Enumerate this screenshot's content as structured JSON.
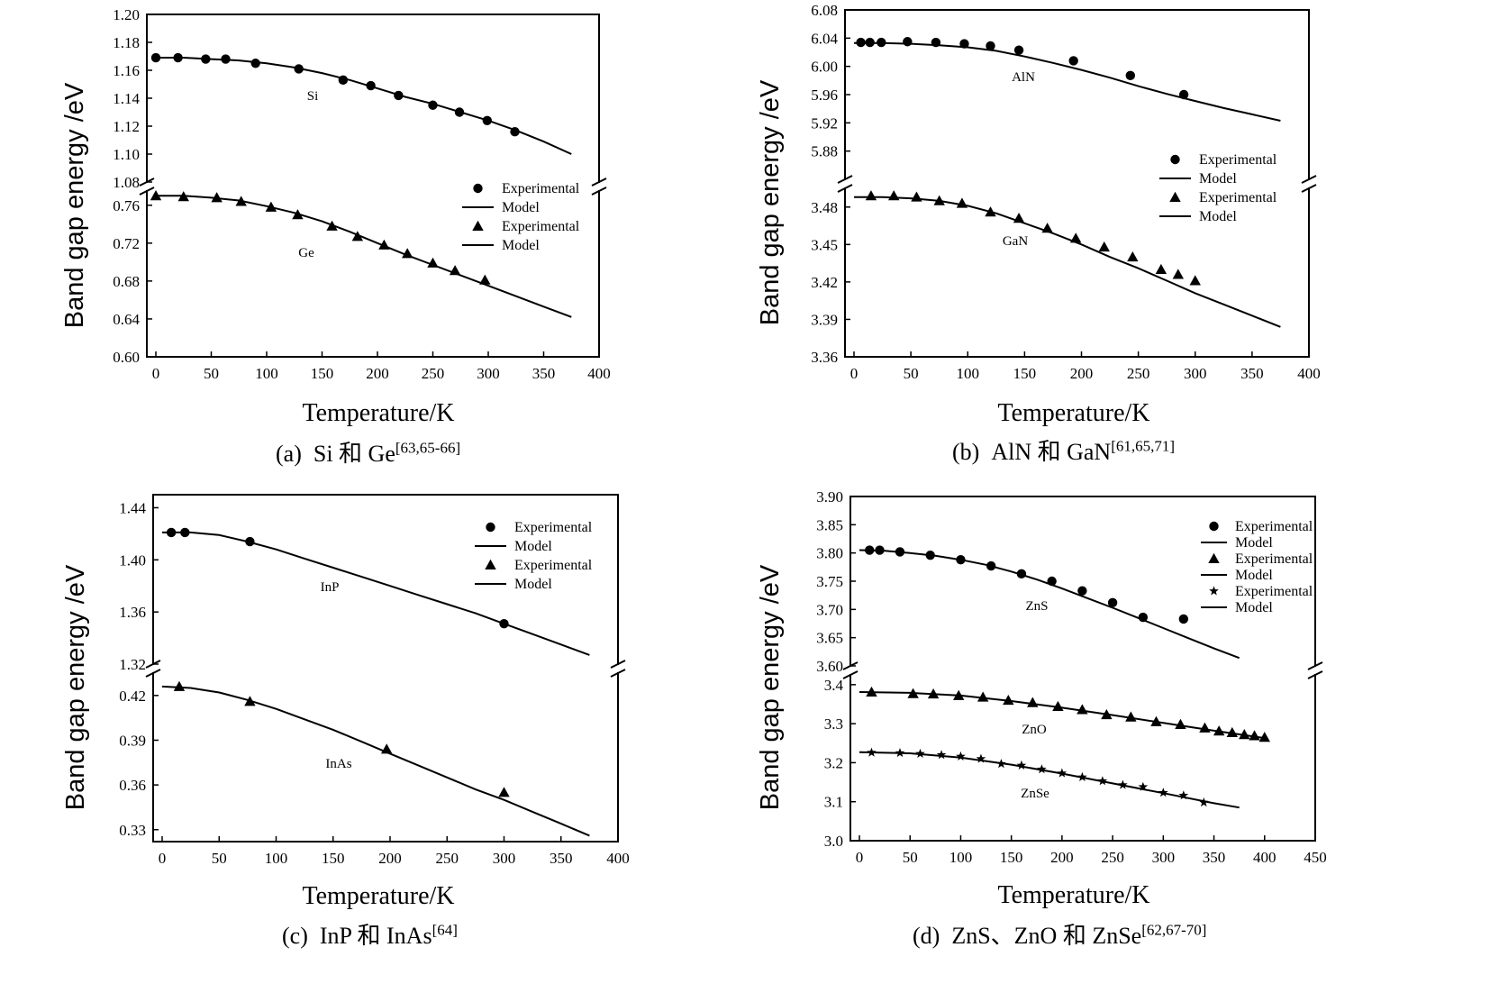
{
  "y_axis_label": "Band gap energy /eV",
  "x_axis_label": "Temperature/K",
  "legend_labels": {
    "experimental": "Experimental",
    "model": "Model"
  },
  "captions": [
    {
      "letter": "(a)",
      "text": "Si 和 Ge",
      "refs": "[63,65-66]"
    },
    {
      "letter": "(b)",
      "text": "AlN 和 GaN",
      "refs": "[61,65,71]"
    },
    {
      "letter": "(c)",
      "text": "InP 和 InAs",
      "refs": "[64]"
    },
    {
      "letter": "(d)",
      "text": "ZnS、ZnO 和 ZnSe",
      "refs": "[62,67-70]"
    }
  ],
  "chart_data": [
    {
      "id": "a",
      "type": "scatter",
      "xlabel": "Temperature/K",
      "ylabel": "Band gap energy /eV",
      "xlim": [
        0,
        400
      ],
      "xticks": [
        0,
        50,
        100,
        150,
        200,
        250,
        300,
        350,
        400
      ],
      "legend_position": "right",
      "upper": {
        "ylim": [
          1.08,
          1.2
        ],
        "yticks": [
          "1.08",
          "1.10",
          "1.12",
          "1.14",
          "1.16",
          "1.18",
          "1.20"
        ]
      },
      "lower": {
        "ylim": [
          0.6,
          0.775
        ],
        "yticks": [
          "0.60",
          "0.64",
          "0.68",
          "0.72",
          "0.76"
        ]
      },
      "series": [
        {
          "material": "Si",
          "panel": "upper",
          "marker": "circle",
          "exp_x": [
            0,
            20,
            45,
            63,
            90,
            129,
            169,
            194,
            219,
            250,
            274,
            299,
            324
          ],
          "exp_y": [
            1.169,
            1.169,
            1.168,
            1.168,
            1.165,
            1.161,
            1.153,
            1.149,
            1.142,
            1.135,
            1.13,
            1.124,
            1.116
          ],
          "model_x": [
            0,
            25,
            50,
            75,
            100,
            125,
            150,
            175,
            200,
            225,
            250,
            275,
            300,
            325,
            350,
            375
          ],
          "model_y": [
            1.169,
            1.169,
            1.168,
            1.167,
            1.165,
            1.162,
            1.158,
            1.153,
            1.147,
            1.141,
            1.136,
            1.13,
            1.124,
            1.117,
            1.109,
            1.1
          ]
        },
        {
          "material": "Ge",
          "panel": "lower",
          "marker": "triangle",
          "exp_x": [
            0,
            25,
            55,
            77,
            104,
            128,
            159,
            182,
            206,
            227,
            250,
            270,
            297
          ],
          "exp_y": [
            0.77,
            0.769,
            0.768,
            0.764,
            0.758,
            0.75,
            0.738,
            0.727,
            0.718,
            0.709,
            0.699,
            0.691,
            0.681
          ],
          "model_x": [
            0,
            25,
            50,
            75,
            100,
            125,
            150,
            175,
            200,
            225,
            250,
            275,
            300,
            325,
            350,
            375
          ],
          "model_y": [
            0.77,
            0.77,
            0.768,
            0.765,
            0.759,
            0.752,
            0.743,
            0.732,
            0.72,
            0.708,
            0.697,
            0.686,
            0.675,
            0.664,
            0.653,
            0.642
          ]
        }
      ]
    },
    {
      "id": "b",
      "type": "scatter",
      "xlabel": "Temperature/K",
      "ylabel": "Band gap energy /eV",
      "xlim": [
        0,
        400
      ],
      "xticks": [
        0,
        50,
        100,
        150,
        200,
        250,
        300,
        350,
        400
      ],
      "legend_position": "right",
      "upper": {
        "ylim": [
          5.84,
          6.08
        ],
        "yticks": [
          "5.88",
          "5.92",
          "5.96",
          "6.00",
          "6.04",
          "6.08"
        ]
      },
      "lower": {
        "ylim": [
          3.36,
          3.495
        ],
        "yticks": [
          "3.36",
          "3.39",
          "3.42",
          "3.45",
          "3.48"
        ]
      },
      "series": [
        {
          "material": "AlN",
          "panel": "upper",
          "marker": "circle",
          "exp_x": [
            6,
            14,
            24,
            47,
            72,
            97,
            120,
            145,
            193,
            243,
            290
          ],
          "exp_y": [
            6.034,
            6.034,
            6.034,
            6.035,
            6.034,
            6.032,
            6.029,
            6.023,
            6.008,
            5.987,
            5.96
          ],
          "model_x": [
            0,
            25,
            50,
            75,
            100,
            125,
            150,
            175,
            200,
            225,
            250,
            275,
            300,
            325,
            350,
            375
          ],
          "model_y": [
            6.033,
            6.033,
            6.032,
            6.03,
            6.027,
            6.022,
            6.014,
            6.005,
            5.995,
            5.984,
            5.972,
            5.961,
            5.951,
            5.941,
            5.932,
            5.923
          ]
        },
        {
          "material": "GaN",
          "panel": "lower",
          "marker": "triangle",
          "exp_x": [
            15,
            35,
            55,
            75,
            95,
            120,
            145,
            170,
            195,
            220,
            245,
            270,
            285,
            300
          ],
          "exp_y": [
            3.489,
            3.489,
            3.488,
            3.485,
            3.483,
            3.476,
            3.471,
            3.463,
            3.455,
            3.448,
            3.44,
            3.43,
            3.426,
            3.421
          ],
          "model_x": [
            0,
            25,
            50,
            75,
            100,
            125,
            150,
            175,
            200,
            225,
            250,
            275,
            300,
            325,
            350,
            375
          ],
          "model_y": [
            3.488,
            3.488,
            3.487,
            3.485,
            3.481,
            3.475,
            3.467,
            3.459,
            3.45,
            3.44,
            3.431,
            3.421,
            3.411,
            3.402,
            3.393,
            3.384
          ]
        }
      ]
    },
    {
      "id": "c",
      "type": "scatter",
      "xlabel": "Temperature/K",
      "ylabel": "Band gap energy /eV",
      "xlim": [
        0,
        400
      ],
      "xticks": [
        0,
        50,
        100,
        150,
        200,
        250,
        300,
        350,
        400
      ],
      "legend_position": "right",
      "upper": {
        "ylim": [
          1.32,
          1.45
        ],
        "yticks": [
          "1.32",
          "1.36",
          "1.40",
          "1.44"
        ]
      },
      "lower": {
        "ylim": [
          0.322,
          0.435
        ],
        "yticks": [
          "0.33",
          "0.36",
          "0.39",
          "0.42"
        ]
      },
      "series": [
        {
          "material": "InP",
          "panel": "upper",
          "marker": "circle",
          "exp_x": [
            8,
            20,
            77,
            300
          ],
          "exp_y": [
            1.421,
            1.421,
            1.414,
            1.351
          ],
          "model_x": [
            0,
            25,
            50,
            75,
            100,
            125,
            150,
            175,
            200,
            225,
            250,
            275,
            300,
            325,
            350,
            375
          ],
          "model_y": [
            1.421,
            1.421,
            1.419,
            1.414,
            1.408,
            1.401,
            1.394,
            1.387,
            1.38,
            1.373,
            1.366,
            1.359,
            1.351,
            1.343,
            1.335,
            1.327
          ]
        },
        {
          "material": "InAs",
          "panel": "lower",
          "marker": "triangle",
          "exp_x": [
            15,
            77,
            197,
            300
          ],
          "exp_y": [
            0.426,
            0.416,
            0.384,
            0.355
          ],
          "model_x": [
            0,
            25,
            50,
            75,
            100,
            125,
            150,
            175,
            200,
            225,
            250,
            275,
            300,
            325,
            350,
            375
          ],
          "model_y": [
            0.426,
            0.425,
            0.422,
            0.417,
            0.411,
            0.404,
            0.397,
            0.389,
            0.381,
            0.373,
            0.365,
            0.357,
            0.35,
            0.342,
            0.334,
            0.326
          ]
        }
      ]
    },
    {
      "id": "d",
      "type": "scatter",
      "xlabel": "Temperature/K",
      "ylabel": "Band gap energy /eV",
      "xlim": [
        0,
        450
      ],
      "xticks": [
        0,
        50,
        100,
        150,
        200,
        250,
        300,
        350,
        400,
        450
      ],
      "legend_position": "right",
      "upper": {
        "ylim": [
          3.6,
          3.9
        ],
        "yticks": [
          "3.60",
          "3.65",
          "3.70",
          "3.75",
          "3.80",
          "3.85",
          "3.90"
        ]
      },
      "lower": {
        "ylim": [
          3.0,
          3.425
        ],
        "yticks": [
          "3.0",
          "3.1",
          "3.2",
          "3.3",
          "3.4"
        ]
      },
      "series": [
        {
          "material": "ZnS",
          "panel": "upper",
          "marker": "circle",
          "exp_x": [
            10,
            20,
            40,
            70,
            100,
            130,
            160,
            190,
            220,
            250,
            280,
            320
          ],
          "exp_y": [
            3.805,
            3.805,
            3.802,
            3.796,
            3.788,
            3.777,
            3.763,
            3.75,
            3.733,
            3.712,
            3.686,
            3.683
          ],
          "model_x": [
            0,
            25,
            50,
            75,
            100,
            125,
            150,
            175,
            200,
            225,
            250,
            275,
            300,
            325,
            350,
            375
          ],
          "model_y": [
            3.805,
            3.804,
            3.8,
            3.795,
            3.788,
            3.779,
            3.767,
            3.753,
            3.737,
            3.72,
            3.703,
            3.685,
            3.667,
            3.649,
            3.631,
            3.614
          ]
        },
        {
          "material": "ZnO",
          "panel": "lower",
          "marker": "triangle",
          "exp_x": [
            12,
            53,
            73,
            98,
            122,
            147,
            171,
            196,
            220,
            244,
            268,
            293,
            317,
            341,
            355,
            368,
            380,
            390,
            400
          ],
          "exp_y": [
            3.381,
            3.377,
            3.376,
            3.372,
            3.368,
            3.36,
            3.354,
            3.344,
            3.336,
            3.323,
            3.317,
            3.305,
            3.298,
            3.289,
            3.281,
            3.277,
            3.272,
            3.269,
            3.265
          ],
          "model_x": [
            0,
            50,
            100,
            150,
            200,
            250,
            300,
            350,
            400
          ],
          "model_y": [
            3.381,
            3.379,
            3.372,
            3.358,
            3.341,
            3.322,
            3.302,
            3.282,
            3.263
          ]
        },
        {
          "material": "ZnSe",
          "panel": "lower",
          "marker": "star",
          "exp_x": [
            12,
            40,
            60,
            81,
            100,
            120,
            140,
            160,
            180,
            200,
            220,
            240,
            260,
            280,
            300,
            320,
            340
          ],
          "exp_y": [
            3.226,
            3.225,
            3.223,
            3.22,
            3.216,
            3.21,
            3.197,
            3.193,
            3.183,
            3.173,
            3.163,
            3.153,
            3.143,
            3.138,
            3.123,
            3.116,
            3.098
          ],
          "model_x": [
            0,
            50,
            100,
            150,
            200,
            250,
            300,
            350,
            375
          ],
          "model_y": [
            3.227,
            3.224,
            3.213,
            3.195,
            3.172,
            3.147,
            3.122,
            3.096,
            3.085
          ]
        }
      ]
    }
  ]
}
